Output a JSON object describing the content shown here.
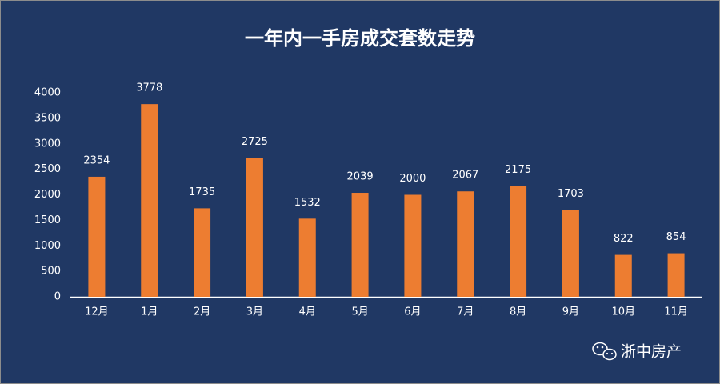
{
  "chart_data": {
    "type": "bar",
    "title": "一年内一手房成交套数走势",
    "categories": [
      "12月",
      "1月",
      "2月",
      "3月",
      "4月",
      "5月",
      "6月",
      "7月",
      "8月",
      "9月",
      "10月",
      "11月"
    ],
    "values": [
      2354,
      3778,
      1735,
      2725,
      1532,
      2039,
      2000,
      2067,
      2175,
      1703,
      822,
      854
    ],
    "color": "#ed7d31",
    "ylim": [
      0,
      4000
    ],
    "yticks": [
      0,
      500,
      1000,
      1500,
      2000,
      2500,
      3000,
      3500,
      4000
    ],
    "grid": false,
    "watermark": "浙中房产"
  }
}
